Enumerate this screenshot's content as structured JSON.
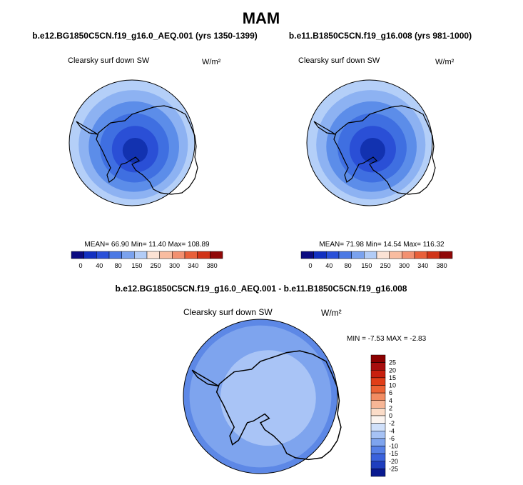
{
  "title": "MAM",
  "panels": [
    {
      "case": "b.e12.BG1850C5CN.f19_g16.0_AEQ.001 (yrs 1350-1399)",
      "variable": "Clearsky surf down SW",
      "units": "W/m²",
      "stats": "MEAN=  66.90  Min=  11.40  Max= 108.89",
      "colorbar_labels": [
        0,
        40,
        80,
        150,
        250,
        300,
        340,
        380
      ]
    },
    {
      "case": "b.e11.B1850C5CN.f19_g16.008 (yrs 981-1000)",
      "variable": "Clearsky surf down SW",
      "units": "W/m²",
      "stats": "MEAN=  71.98  Min=  14.54  Max= 116.32",
      "colorbar_labels": [
        0,
        40,
        80,
        150,
        250,
        300,
        340,
        380
      ]
    }
  ],
  "difference": {
    "case": "b.e12.BG1850C5CN.f19_g16.0_AEQ.001 - b.e11.B1850C5CN.f19_g16.008",
    "variable": "Clearsky surf down SW",
    "units": "W/m²",
    "stats": "MIN = -7.53 MAX = -2.83",
    "colorbar_labels": [
      25,
      20,
      15,
      10,
      6,
      4,
      2,
      0,
      -2,
      -4,
      -6,
      -10,
      -15,
      -20,
      -25
    ]
  }
}
